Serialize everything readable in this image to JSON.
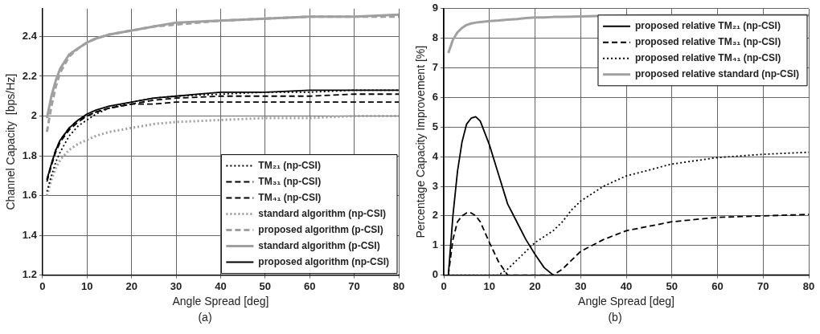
{
  "chart_data": [
    {
      "type": "line",
      "xlabel": "Angle Spread [deg]",
      "ylabel": "Channel Capacity  [bps/Hz]",
      "annotations": [
        "(a)"
      ],
      "x": [
        1,
        2,
        3,
        4,
        6,
        8,
        10,
        12,
        15,
        20,
        25,
        30,
        40,
        50,
        60,
        70,
        80
      ],
      "xlim": [
        0,
        80
      ],
      "xticks": [
        0,
        10,
        20,
        30,
        40,
        50,
        60,
        70,
        80
      ],
      "ylim": [
        1.2,
        2.54
      ],
      "yticks": [
        1.2,
        1.4,
        1.6,
        1.8,
        2,
        2.2,
        2.4
      ],
      "grid": true,
      "legend": "bottom right",
      "marker": "none",
      "series": [
        {
          "name": "TM₂₁ (np-CSI)",
          "color": "#000000",
          "line_style": "dotted",
          "values": [
            1.62,
            1.7,
            1.77,
            1.82,
            1.9,
            1.95,
            1.98,
            2.01,
            2.04,
            2.07,
            2.09,
            2.1,
            2.11,
            2.12,
            2.12,
            2.13,
            2.13
          ]
        },
        {
          "name": "TM₃₁ (np-CSI)",
          "color": "#000000",
          "line_style": "dashed",
          "values": [
            1.68,
            1.76,
            1.83,
            1.88,
            1.94,
            1.98,
            2.0,
            2.02,
            2.04,
            2.06,
            2.08,
            2.09,
            2.1,
            2.1,
            2.1,
            2.11,
            2.11
          ]
        },
        {
          "name": "TM₄₁ (np-CSI)",
          "color": "#000000",
          "line_style": "dashed",
          "values": [
            1.67,
            1.75,
            1.82,
            1.87,
            1.93,
            1.97,
            2.0,
            2.02,
            2.04,
            2.06,
            2.06,
            2.07,
            2.07,
            2.07,
            2.07,
            2.07,
            2.07
          ]
        },
        {
          "name": "standard algorithm (np-CSI)",
          "color": "#a0a0a0",
          "line_style": "dotted",
          "values": [
            1.6,
            1.68,
            1.74,
            1.78,
            1.83,
            1.86,
            1.88,
            1.9,
            1.92,
            1.94,
            1.96,
            1.97,
            1.98,
            1.99,
            1.99,
            2.0,
            2.0
          ]
        },
        {
          "name": "proposed algorithm (p-CSI)",
          "color": "#a0a0a0",
          "line_style": "dashed",
          "values": [
            1.92,
            2.05,
            2.15,
            2.22,
            2.3,
            2.34,
            2.37,
            2.39,
            2.41,
            2.43,
            2.45,
            2.46,
            2.48,
            2.49,
            2.5,
            2.5,
            2.5
          ]
        },
        {
          "name": "standard algorithm (p-CSI)",
          "color": "#a0a0a0",
          "line_style": "solid",
          "values": [
            1.99,
            2.1,
            2.18,
            2.24,
            2.31,
            2.34,
            2.37,
            2.39,
            2.41,
            2.43,
            2.45,
            2.47,
            2.48,
            2.49,
            2.5,
            2.5,
            2.51
          ]
        },
        {
          "name": "proposed algorithm (np-CSI)",
          "color": "#000000",
          "line_style": "solid",
          "values": [
            1.68,
            1.76,
            1.83,
            1.88,
            1.94,
            1.98,
            2.01,
            2.03,
            2.05,
            2.07,
            2.09,
            2.1,
            2.12,
            2.12,
            2.13,
            2.13,
            2.13
          ]
        }
      ]
    },
    {
      "type": "line",
      "xlabel": "Angle Spread [deg]",
      "ylabel": "Percentage Capacity Improvement [%]",
      "annotations": [
        "(b)"
      ],
      "x": [
        1,
        2,
        3,
        4,
        5,
        6,
        7,
        8,
        10,
        12,
        14,
        16,
        18,
        20,
        22,
        24,
        26,
        28,
        30,
        35,
        40,
        50,
        60,
        70,
        80
      ],
      "xlim": [
        0,
        80
      ],
      "xticks": [
        0,
        10,
        20,
        30,
        40,
        50,
        60,
        70,
        80
      ],
      "ylim": [
        0,
        9
      ],
      "yticks": [
        0,
        1,
        2,
        3,
        4,
        5,
        6,
        7,
        8,
        9
      ],
      "grid": true,
      "legend": "top right",
      "marker": "none",
      "series": [
        {
          "name": "proposed relative TM₂₁ (np-CSI)",
          "color": "#000000",
          "line_style": "solid",
          "values": [
            0,
            2,
            3.5,
            4.5,
            5.1,
            5.3,
            5.35,
            5.2,
            4.4,
            3.4,
            2.4,
            1.8,
            1.2,
            0.7,
            0.25,
            0,
            0,
            0,
            0,
            0,
            0,
            0,
            0,
            0,
            0
          ]
        },
        {
          "name": "proposed relative TM₃₁ (np-CSI)",
          "color": "#000000",
          "line_style": "dashed",
          "values": [
            0,
            1.2,
            1.8,
            2.0,
            2.1,
            2.1,
            2.0,
            1.8,
            1.1,
            0.45,
            0,
            0,
            0,
            0,
            0,
            0,
            0.2,
            0.5,
            0.8,
            1.2,
            1.5,
            1.8,
            1.95,
            2.0,
            2.05
          ]
        },
        {
          "name": "proposed relative TM₄₁ (np-CSI)",
          "color": "#000000",
          "line_style": "dotted",
          "values": [
            0,
            0,
            0,
            0,
            0,
            0,
            0,
            0,
            0,
            0,
            0.2,
            0.5,
            0.8,
            1.1,
            1.3,
            1.5,
            1.8,
            2.2,
            2.5,
            3.0,
            3.35,
            3.75,
            3.97,
            4.08,
            4.15
          ]
        },
        {
          "name": "proposed relative standard (np-CSI)",
          "color": "#a0a0a0",
          "line_style": "solid",
          "values": [
            7.5,
            7.95,
            8.2,
            8.35,
            8.45,
            8.5,
            8.53,
            8.55,
            8.58,
            8.6,
            8.63,
            8.65,
            8.68,
            8.7,
            8.7,
            8.72,
            8.72,
            8.73,
            8.74,
            8.76,
            8.77,
            8.78,
            8.78,
            8.78,
            8.78
          ]
        }
      ]
    }
  ]
}
